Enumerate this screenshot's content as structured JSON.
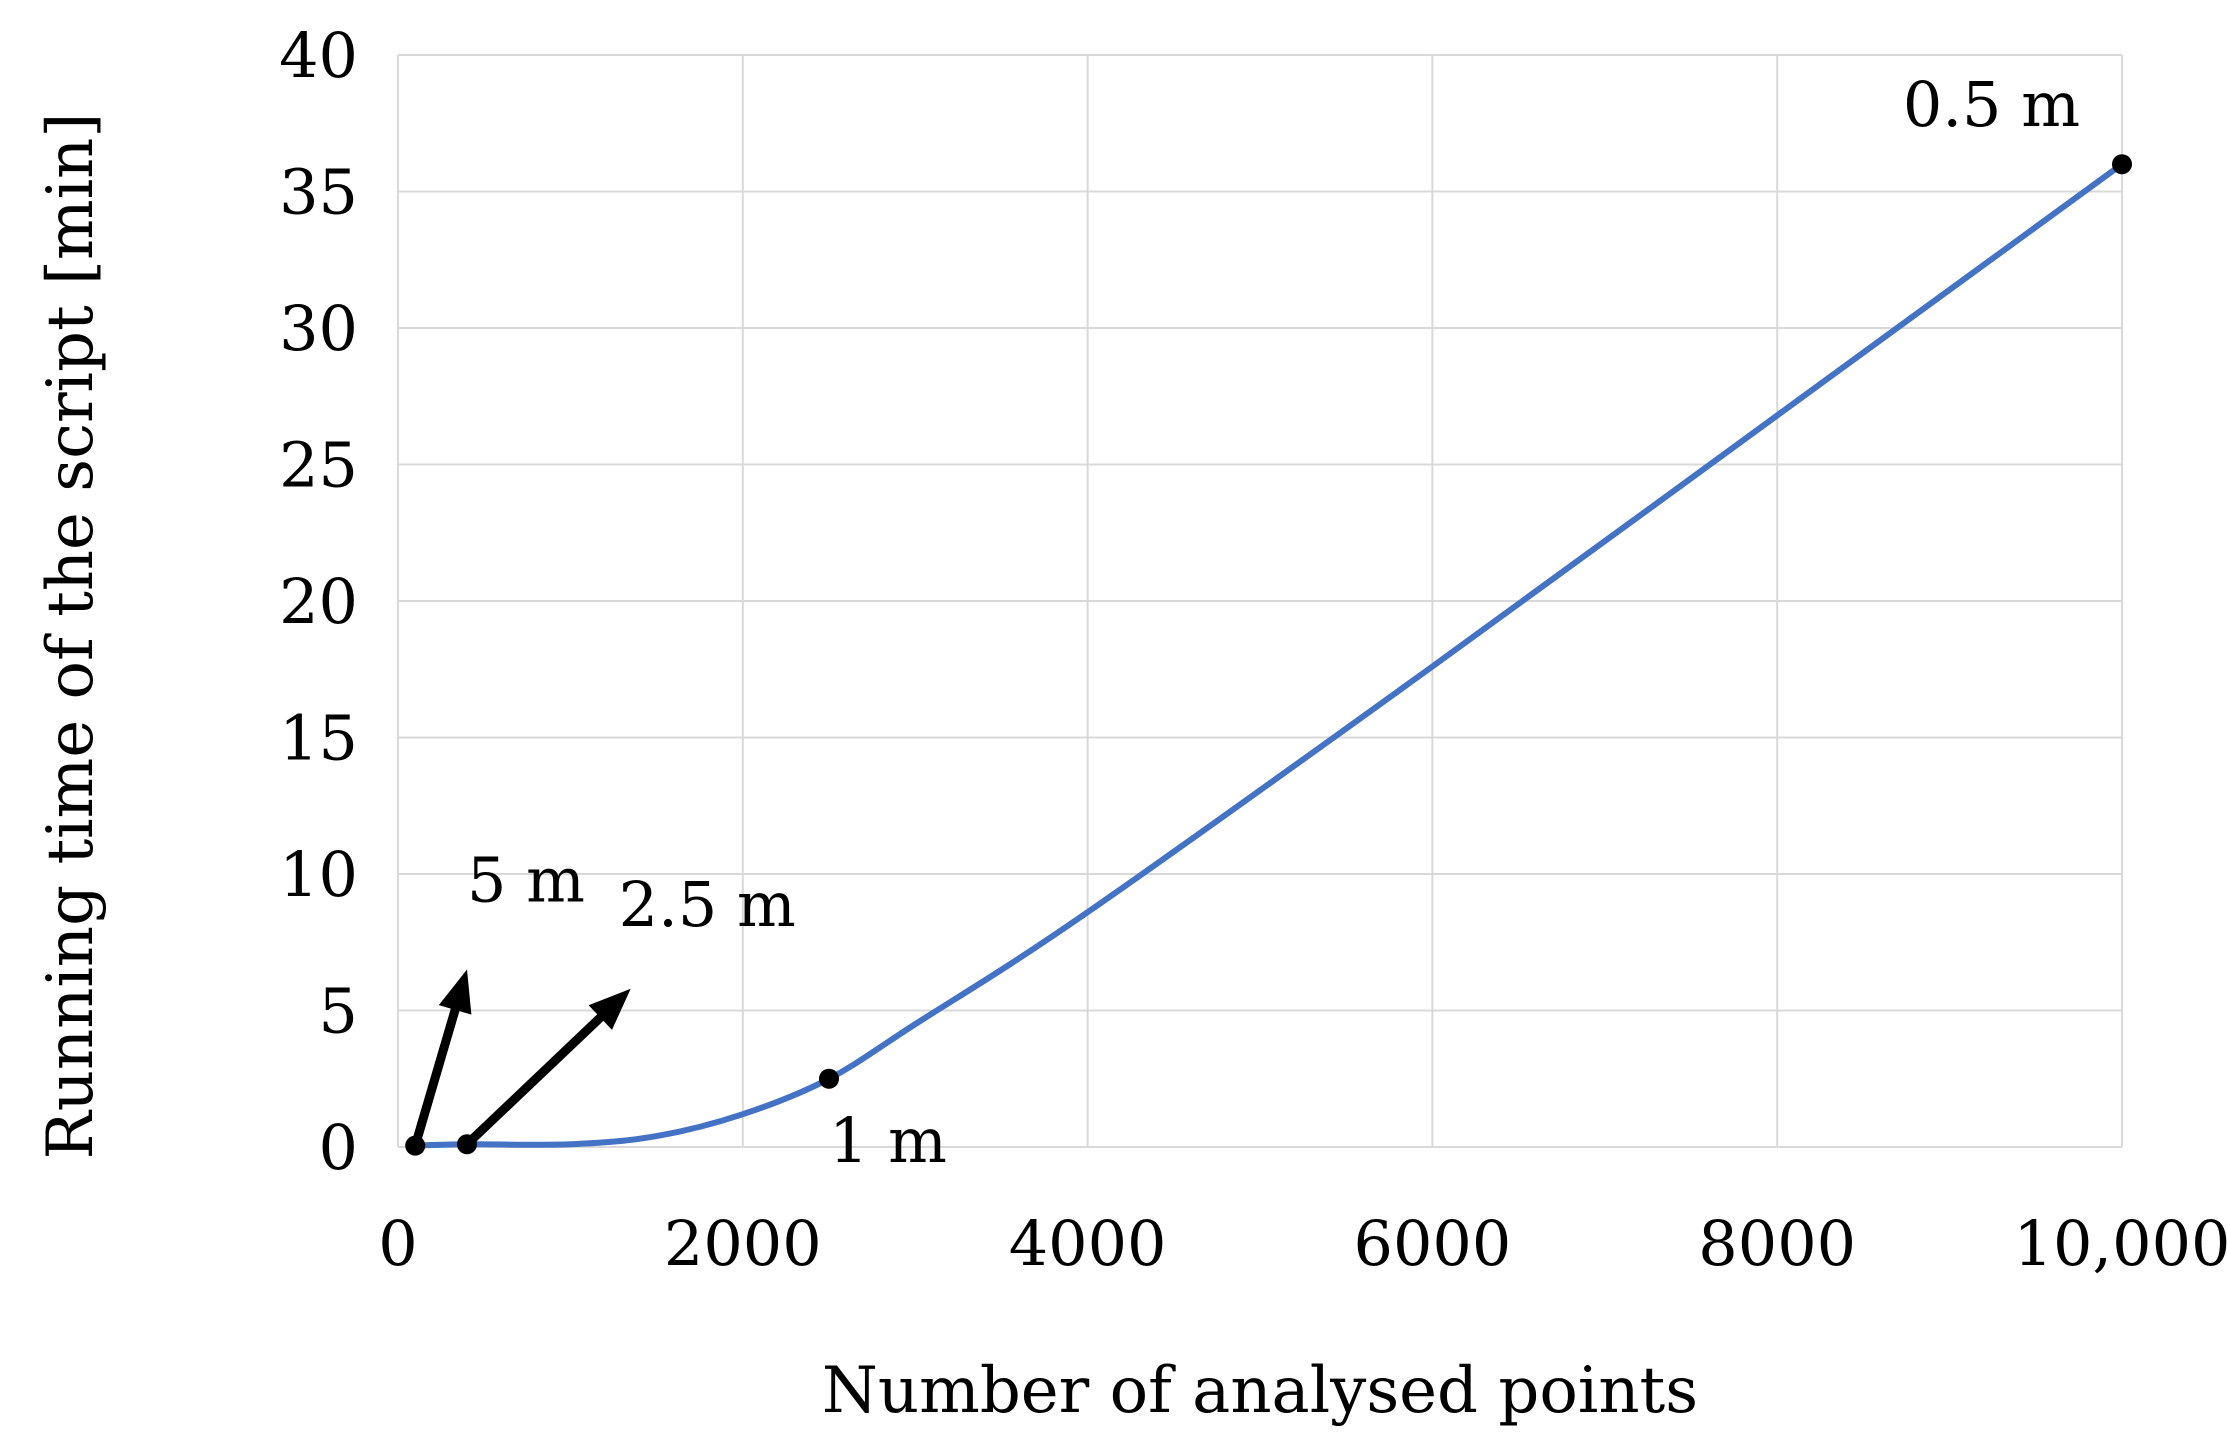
{
  "chart_data": {
    "type": "line",
    "title": "",
    "xlabel": "Number of analysed points",
    "ylabel": "Running time of the script [min]",
    "xlim": [
      0,
      10000
    ],
    "ylim": [
      0,
      40
    ],
    "grid": true,
    "x_ticks": [
      0,
      2000,
      4000,
      6000,
      8000,
      10000
    ],
    "x_tick_labels": [
      "0",
      "2000",
      "4000",
      "6000",
      "8000",
      "10,000"
    ],
    "y_ticks": [
      0,
      5,
      10,
      15,
      20,
      25,
      30,
      35,
      40
    ],
    "y_tick_labels": [
      "0",
      "5",
      "10",
      "15",
      "20",
      "25",
      "30",
      "35",
      "40"
    ],
    "series": [
      {
        "color": "#4472c4",
        "x": [
          100,
          400,
          1000,
          1500,
          2000,
          2500,
          3000,
          4000,
          6000,
          8000,
          10000
        ],
        "y": [
          0.05,
          0.1,
          0.1,
          0.4,
          1.2,
          2.5,
          4.5,
          8.6,
          17.6,
          26.8,
          36.0
        ]
      }
    ],
    "points": [
      {
        "label": "5 m",
        "x": 100,
        "y": 0.05
      },
      {
        "label": "2.5 m",
        "x": 400,
        "y": 0.1
      },
      {
        "label": "1 m",
        "x": 2500,
        "y": 2.5
      },
      {
        "label": "0.5 m",
        "x": 10000,
        "y": 36
      }
    ],
    "arrows": [
      {
        "from_point": "5 m",
        "to": {
          "x": 400,
          "y": 6.5
        }
      },
      {
        "from_point": "2.5 m",
        "to": {
          "x": 1350,
          "y": 5.8
        }
      }
    ]
  }
}
